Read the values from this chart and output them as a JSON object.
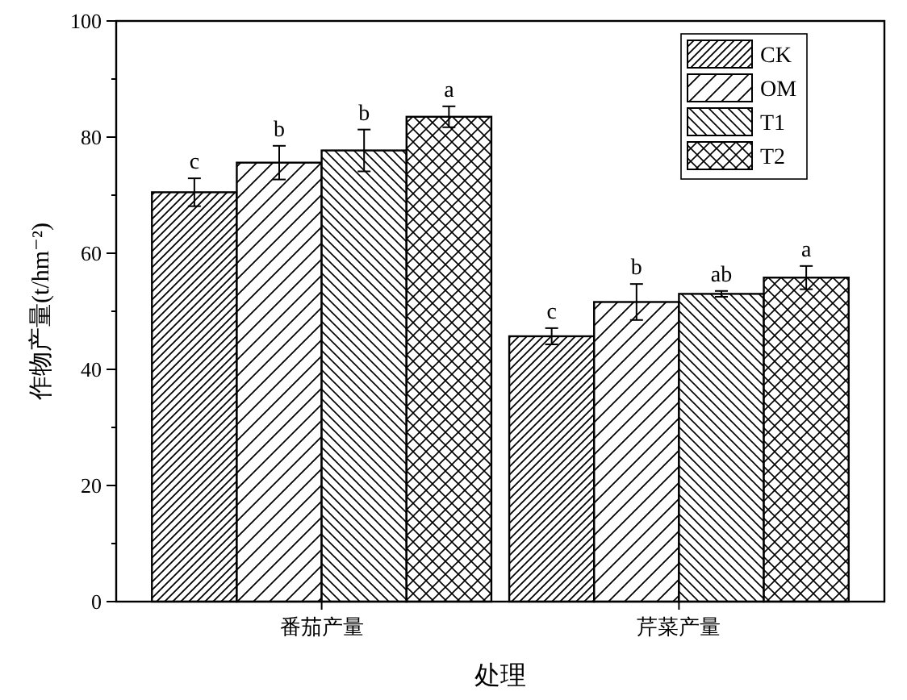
{
  "chart_data": {
    "type": "bar",
    "xlabel": "处理",
    "ylabel": "作物产量(t/hm⁻²)",
    "categories": [
      "番茄产量",
      "芹菜产量"
    ],
    "series": [
      {
        "name": "CK",
        "color": "#000000",
        "values": [
          70.5,
          45.7
        ],
        "errors": [
          2.4,
          1.4
        ],
        "value_labels": [
          "c",
          "c"
        ]
      },
      {
        "name": "OM",
        "color": "#000000",
        "values": [
          75.6,
          51.6
        ],
        "errors": [
          2.9,
          3.1
        ],
        "value_labels": [
          "b",
          "b"
        ]
      },
      {
        "name": "T1",
        "color": "#000000",
        "values": [
          77.7,
          53.0
        ],
        "errors": [
          3.6,
          0.5
        ],
        "value_labels": [
          "b",
          "ab"
        ]
      },
      {
        "name": "T2",
        "color": "#000000",
        "values": [
          83.5,
          55.8
        ],
        "errors": [
          1.8,
          2.0
        ],
        "value_labels": [
          "a",
          "a"
        ]
      }
    ],
    "ylim": [
      0,
      100
    ],
    "yticks": [
      0,
      {
        "value": 10,
        "label": null
      },
      20,
      {
        "value": 30,
        "label": null
      },
      40,
      {
        "value": 50,
        "label": null
      },
      60,
      {
        "value": 70,
        "label": null
      },
      80,
      {
        "value": 90,
        "label": null
      },
      100
    ],
    "legend": "top right",
    "grid": false
  }
}
